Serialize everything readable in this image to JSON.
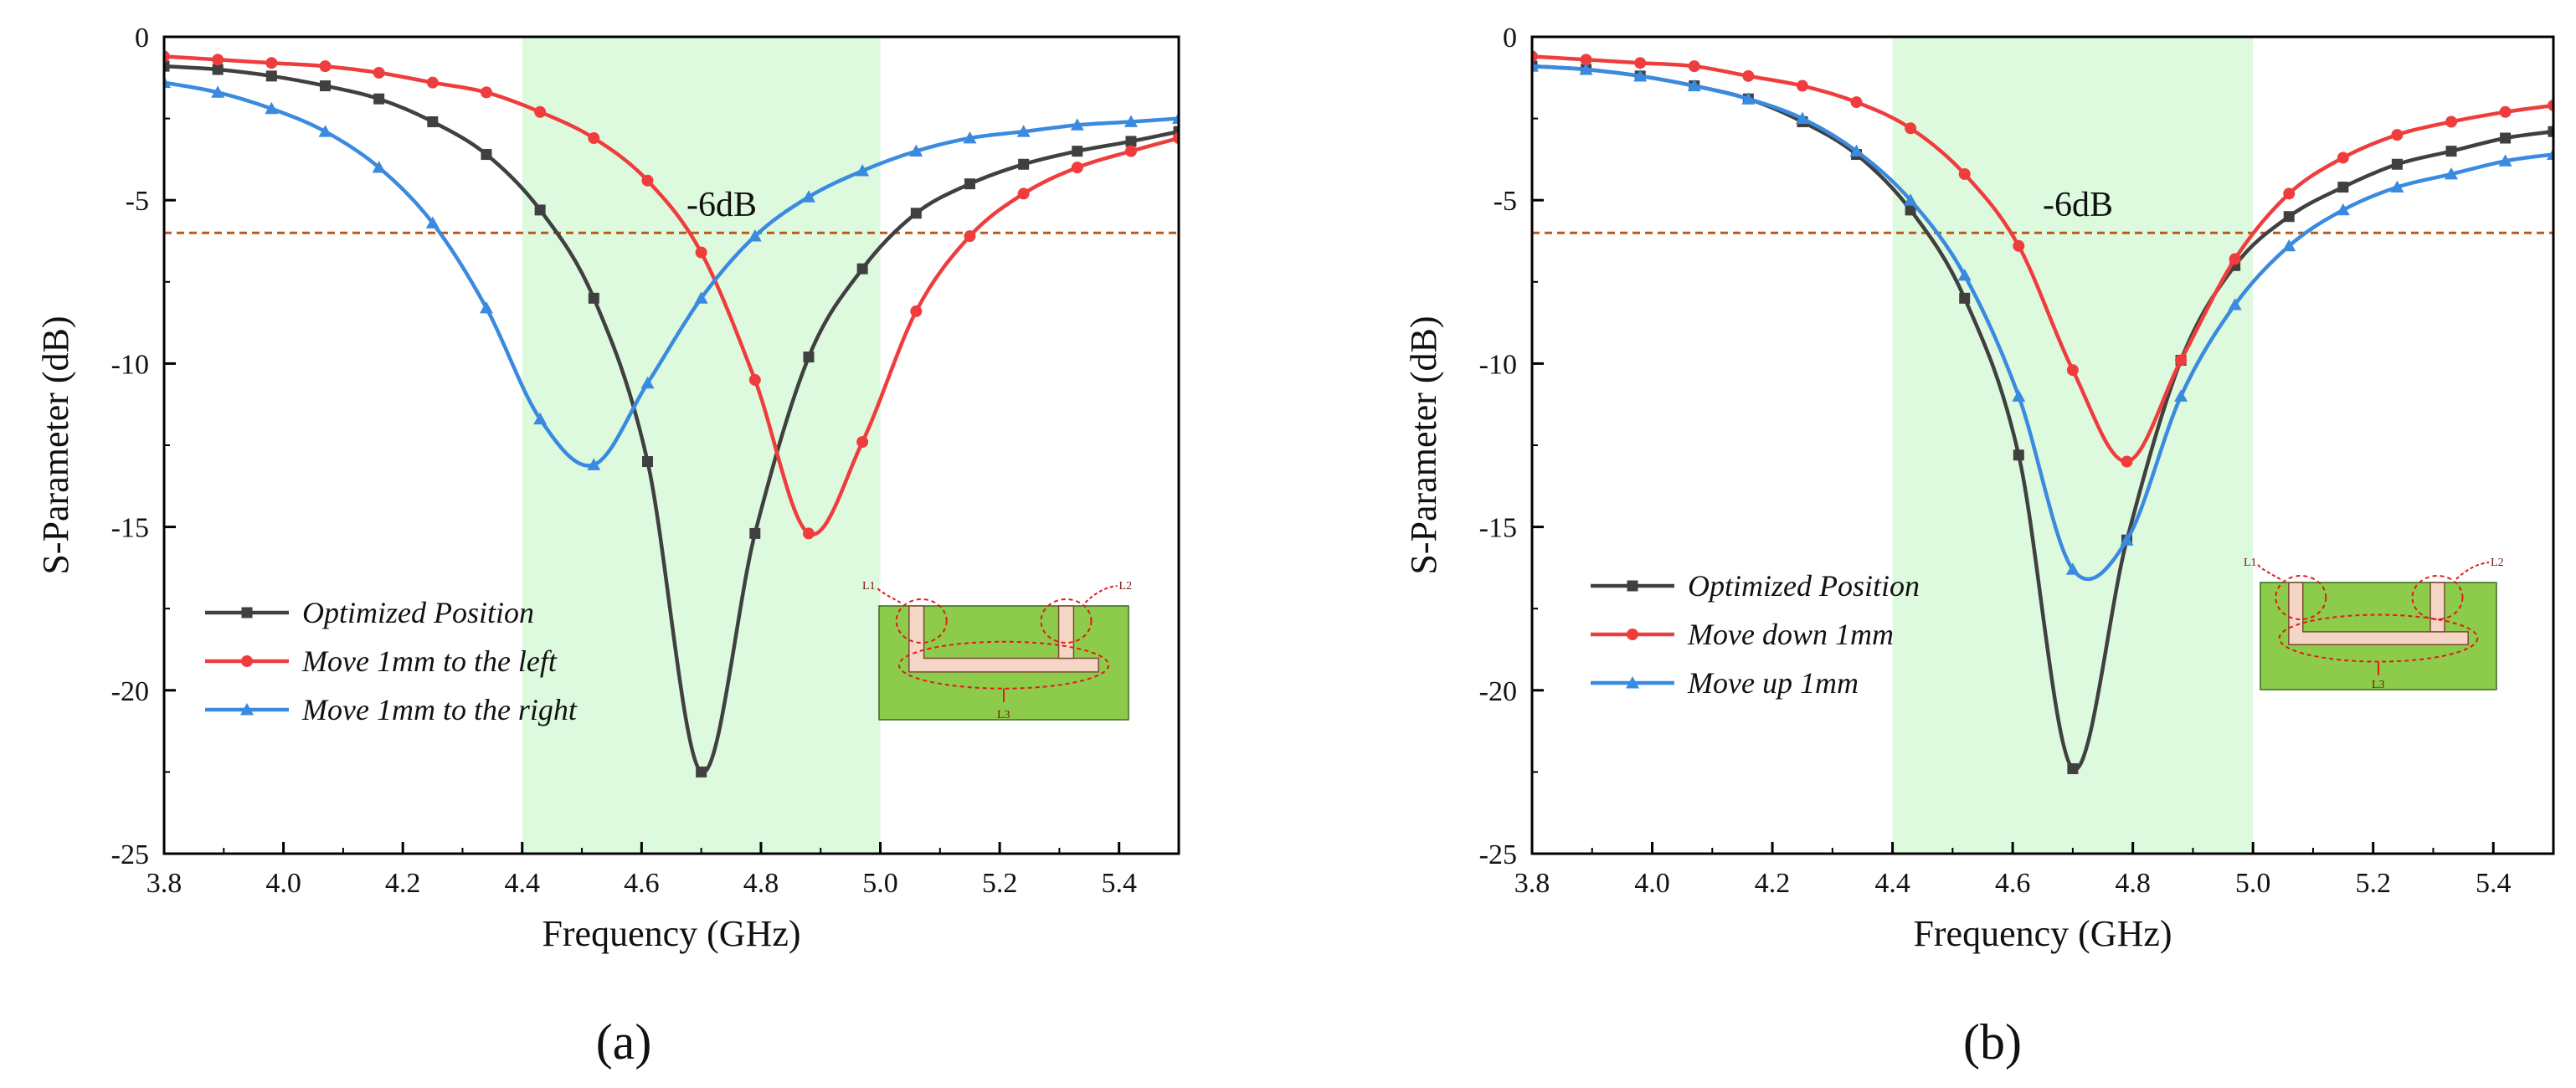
{
  "colors": {
    "black_series": "#404040",
    "red_series": "#ef3d3d",
    "blue_series": "#3a8ae0",
    "band_fill": "#defade",
    "threshold_line": "#b85a1e",
    "inset_board": "#8ccc4a",
    "inset_strip": "#f5d6c6",
    "inset_dashed": "#e21a1a"
  },
  "chart_data": [
    {
      "type": "line",
      "panel_label": "(a)",
      "xlabel": "Frequency (GHz)",
      "ylabel": "S-Parameter (dB)",
      "xlim": [
        3.8,
        5.5
      ],
      "ylim": [
        -25,
        0
      ],
      "xticks": [
        "3.8",
        "4.0",
        "4.2",
        "4.4",
        "4.6",
        "4.8",
        "5.0",
        "5.2",
        "5.4"
      ],
      "yticks": [
        "0",
        "-5",
        "-10",
        "-15",
        "-20",
        "-25"
      ],
      "band": [
        4.4,
        5.0
      ],
      "threshold": {
        "value": -6,
        "label": "-6dB"
      },
      "inset_labels": {
        "l1": "L1",
        "l2": "L2",
        "l3": "L3"
      },
      "series": [
        {
          "name": "Optimized Position",
          "marker": "square",
          "color_key": "black_series",
          "x": [
            3.8,
            3.89,
            3.98,
            4.07,
            4.16,
            4.25,
            4.34,
            4.43,
            4.52,
            4.61,
            4.7,
            4.79,
            4.88,
            4.97,
            5.06,
            5.15,
            5.24,
            5.33,
            5.42,
            5.5
          ],
          "y": [
            -0.9,
            -1.0,
            -1.2,
            -1.5,
            -1.9,
            -2.6,
            -3.6,
            -5.3,
            -8.0,
            -13.0,
            -22.5,
            -15.2,
            -9.8,
            -7.1,
            -5.4,
            -4.5,
            -3.9,
            -3.5,
            -3.2,
            -2.9
          ]
        },
        {
          "name": "Move 1mm to the left",
          "marker": "circle",
          "color_key": "red_series",
          "x": [
            3.8,
            3.89,
            3.98,
            4.07,
            4.16,
            4.25,
            4.34,
            4.43,
            4.52,
            4.61,
            4.7,
            4.79,
            4.88,
            4.97,
            5.06,
            5.15,
            5.24,
            5.33,
            5.42,
            5.5
          ],
          "y": [
            -0.6,
            -0.7,
            -0.8,
            -0.9,
            -1.1,
            -1.4,
            -1.7,
            -2.3,
            -3.1,
            -4.4,
            -6.6,
            -10.5,
            -15.2,
            -12.4,
            -8.4,
            -6.1,
            -4.8,
            -4.0,
            -3.5,
            -3.1
          ]
        },
        {
          "name": "Move 1mm to the right",
          "marker": "triangle",
          "color_key": "blue_series",
          "x": [
            3.8,
            3.89,
            3.98,
            4.07,
            4.16,
            4.25,
            4.34,
            4.43,
            4.52,
            4.61,
            4.7,
            4.79,
            4.88,
            4.97,
            5.06,
            5.15,
            5.24,
            5.33,
            5.42,
            5.5
          ],
          "y": [
            -1.4,
            -1.7,
            -2.2,
            -2.9,
            -4.0,
            -5.7,
            -8.3,
            -11.7,
            -13.1,
            -10.6,
            -8.0,
            -6.1,
            -4.9,
            -4.1,
            -3.5,
            -3.1,
            -2.9,
            -2.7,
            -2.6,
            -2.5
          ]
        }
      ]
    },
    {
      "type": "line",
      "panel_label": "(b)",
      "xlabel": "Frequency (GHz)",
      "ylabel": "S-Parameter (dB)",
      "xlim": [
        3.8,
        5.5
      ],
      "ylim": [
        -25,
        0
      ],
      "xticks": [
        "3.8",
        "4.0",
        "4.2",
        "4.4",
        "4.6",
        "4.8",
        "5.0",
        "5.2",
        "5.4"
      ],
      "yticks": [
        "0",
        "-5",
        "-10",
        "-15",
        "-20",
        "-25"
      ],
      "band": [
        4.4,
        5.0
      ],
      "threshold": {
        "value": -6,
        "label": "-6dB"
      },
      "inset_labels": {
        "l1": "L1",
        "l2": "L2",
        "l3": "L3"
      },
      "series": [
        {
          "name": "Optimized Position",
          "marker": "square",
          "color_key": "black_series",
          "x": [
            3.8,
            3.89,
            3.98,
            4.07,
            4.16,
            4.25,
            4.34,
            4.43,
            4.52,
            4.61,
            4.7,
            4.79,
            4.88,
            4.97,
            5.06,
            5.15,
            5.24,
            5.33,
            5.42,
            5.5
          ],
          "y": [
            -0.9,
            -1.0,
            -1.2,
            -1.5,
            -1.9,
            -2.6,
            -3.6,
            -5.3,
            -8.0,
            -12.8,
            -22.4,
            -15.4,
            -9.9,
            -7.0,
            -5.5,
            -4.6,
            -3.9,
            -3.5,
            -3.1,
            -2.9
          ]
        },
        {
          "name": "Move down 1mm",
          "marker": "circle",
          "color_key": "red_series",
          "x": [
            3.8,
            3.89,
            3.98,
            4.07,
            4.16,
            4.25,
            4.34,
            4.43,
            4.52,
            4.61,
            4.7,
            4.79,
            4.88,
            4.97,
            5.06,
            5.15,
            5.24,
            5.33,
            5.42,
            5.5
          ],
          "y": [
            -0.6,
            -0.7,
            -0.8,
            -0.9,
            -1.2,
            -1.5,
            -2.0,
            -2.8,
            -4.2,
            -6.4,
            -10.2,
            -13.0,
            -9.9,
            -6.8,
            -4.8,
            -3.7,
            -3.0,
            -2.6,
            -2.3,
            -2.1
          ]
        },
        {
          "name": "Move up 1mm",
          "marker": "triangle",
          "color_key": "blue_series",
          "x": [
            3.8,
            3.89,
            3.98,
            4.07,
            4.16,
            4.25,
            4.34,
            4.43,
            4.52,
            4.61,
            4.7,
            4.79,
            4.88,
            4.97,
            5.06,
            5.15,
            5.24,
            5.33,
            5.42,
            5.5
          ],
          "y": [
            -0.9,
            -1.0,
            -1.2,
            -1.5,
            -1.9,
            -2.5,
            -3.5,
            -5.0,
            -7.3,
            -11.0,
            -16.3,
            -15.4,
            -11.0,
            -8.2,
            -6.4,
            -5.3,
            -4.6,
            -4.2,
            -3.8,
            -3.6
          ]
        }
      ]
    }
  ]
}
